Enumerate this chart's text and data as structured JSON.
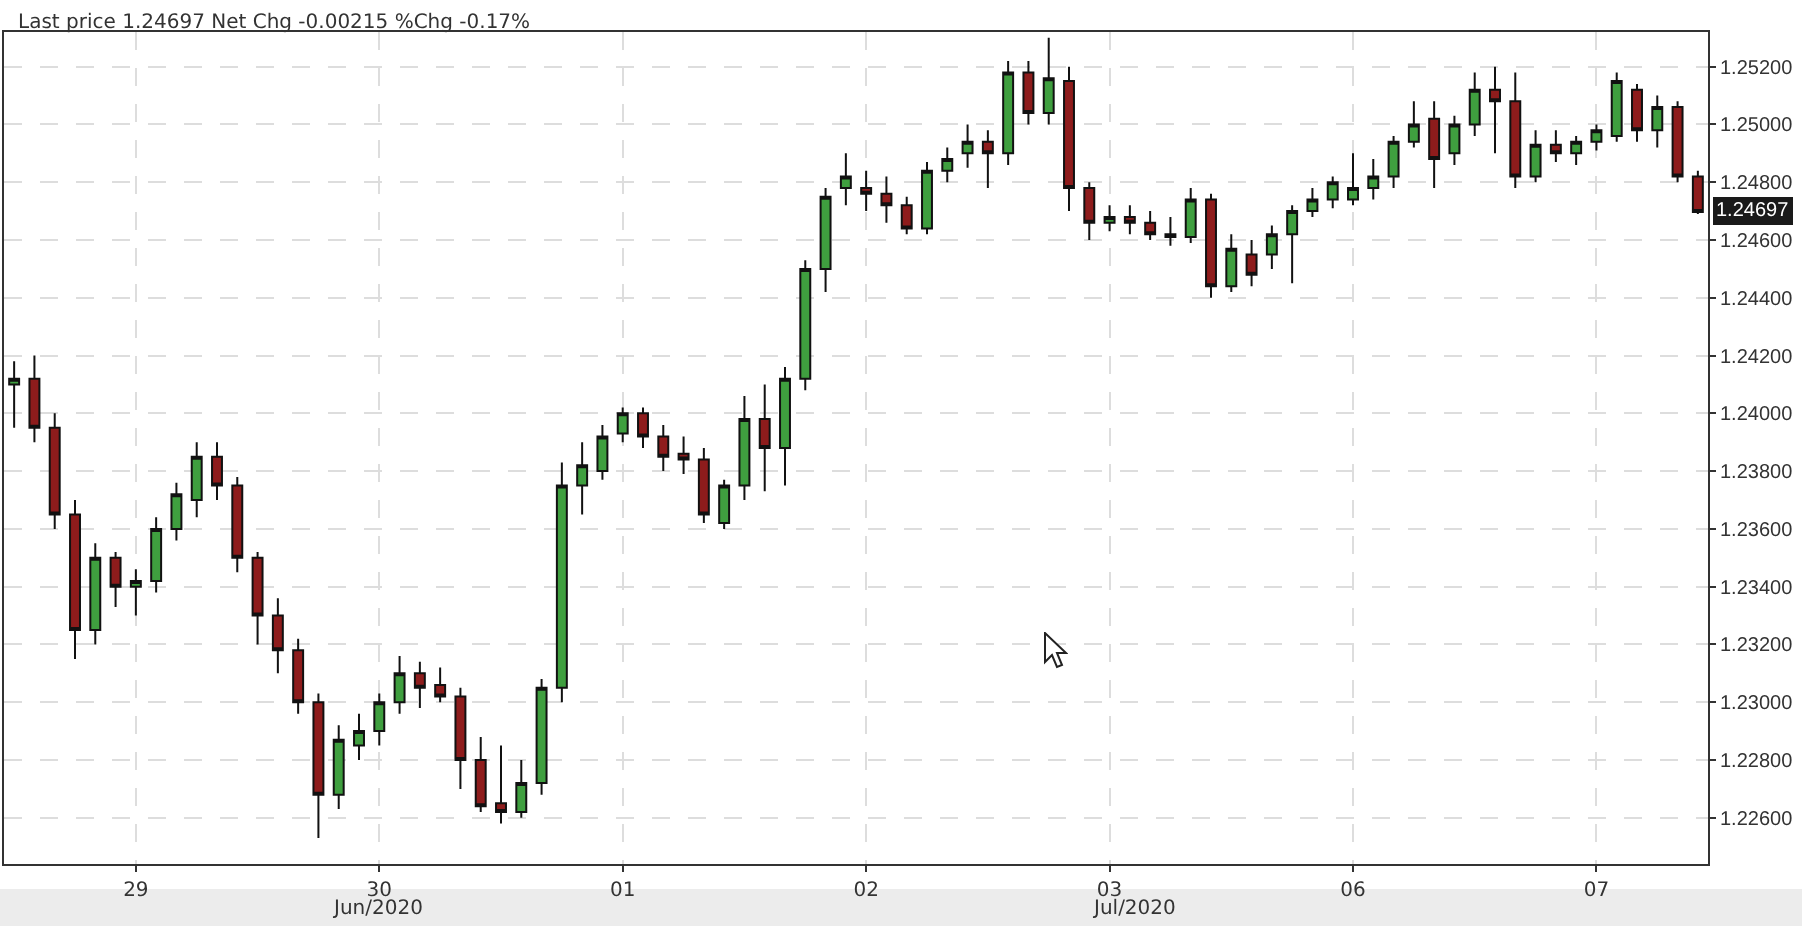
{
  "chart_data": {
    "type": "candlestick",
    "title": "Last price 1.24697 Net Chg -0.00215 %Chg -0.17%",
    "categories": [
      null,
      null,
      null,
      null,
      null,
      null,
      "29",
      null,
      null,
      null,
      null,
      null,
      null,
      null,
      null,
      null,
      null,
      null,
      "30",
      null,
      null,
      null,
      null,
      null,
      null,
      null,
      null,
      null,
      null,
      null,
      "01",
      null,
      null,
      null,
      null,
      null,
      null,
      null,
      null,
      null,
      null,
      null,
      "02",
      null,
      null,
      null,
      null,
      null,
      null,
      null,
      null,
      null,
      null,
      null,
      "03",
      null,
      null,
      null,
      null,
      null,
      null,
      null,
      null,
      null,
      null,
      null,
      "06",
      null,
      null,
      null,
      null,
      null,
      null,
      null,
      null,
      null,
      null,
      null,
      "07",
      null,
      null,
      null,
      null,
      null
    ],
    "ohlc": [
      [
        1.241,
        1.2418,
        1.2395,
        1.2412
      ],
      [
        1.2412,
        1.242,
        1.239,
        1.2395
      ],
      [
        1.2395,
        1.24,
        1.236,
        1.2365
      ],
      [
        1.2365,
        1.237,
        1.2315,
        1.2325
      ],
      [
        1.2325,
        1.2355,
        1.232,
        1.235
      ],
      [
        1.235,
        1.2352,
        1.2333,
        1.234
      ],
      [
        1.234,
        1.2346,
        1.233,
        1.2342
      ],
      [
        1.2342,
        1.2364,
        1.2338,
        1.236
      ],
      [
        1.236,
        1.2376,
        1.2356,
        1.2372
      ],
      [
        1.237,
        1.239,
        1.2364,
        1.2385
      ],
      [
        1.2385,
        1.239,
        1.237,
        1.2375
      ],
      [
        1.2375,
        1.2378,
        1.2345,
        1.235
      ],
      [
        1.235,
        1.2352,
        1.232,
        1.233
      ],
      [
        1.233,
        1.2336,
        1.231,
        1.2318
      ],
      [
        1.2318,
        1.2322,
        1.2296,
        1.23
      ],
      [
        1.23,
        1.2303,
        1.2253,
        1.2268
      ],
      [
        1.2268,
        1.2292,
        1.2263,
        1.2287
      ],
      [
        1.2285,
        1.2296,
        1.228,
        1.229
      ],
      [
        1.229,
        1.2303,
        1.2285,
        1.23
      ],
      [
        1.23,
        1.2316,
        1.2296,
        1.231
      ],
      [
        1.231,
        1.2314,
        1.2298,
        1.2305
      ],
      [
        1.2306,
        1.2312,
        1.23,
        1.2302
      ],
      [
        1.2302,
        1.2305,
        1.227,
        1.228
      ],
      [
        1.228,
        1.2288,
        1.2262,
        1.2264
      ],
      [
        1.2265,
        1.2285,
        1.2258,
        1.2262
      ],
      [
        1.2262,
        1.228,
        1.226,
        1.2272
      ],
      [
        1.2272,
        1.2308,
        1.2268,
        1.2305
      ],
      [
        1.2305,
        1.2383,
        1.23,
        1.2375
      ],
      [
        1.2375,
        1.239,
        1.2365,
        1.2382
      ],
      [
        1.238,
        1.2396,
        1.2377,
        1.2392
      ],
      [
        1.2393,
        1.2402,
        1.239,
        1.24
      ],
      [
        1.24,
        1.2402,
        1.2388,
        1.2392
      ],
      [
        1.2392,
        1.2396,
        1.238,
        1.2385
      ],
      [
        1.2386,
        1.2392,
        1.2379,
        1.2384
      ],
      [
        1.2384,
        1.2388,
        1.2362,
        1.2365
      ],
      [
        1.2362,
        1.2377,
        1.236,
        1.2375
      ],
      [
        1.2375,
        1.2406,
        1.237,
        1.2398
      ],
      [
        1.2398,
        1.241,
        1.2373,
        1.2388
      ],
      [
        1.2388,
        1.2416,
        1.2375,
        1.2412
      ],
      [
        1.2412,
        1.2453,
        1.2408,
        1.245
      ],
      [
        1.245,
        1.2478,
        1.2442,
        1.2475
      ],
      [
        1.2478,
        1.249,
        1.2472,
        1.2482
      ],
      [
        1.2478,
        1.2484,
        1.247,
        1.2476
      ],
      [
        1.2476,
        1.2482,
        1.2466,
        1.2472
      ],
      [
        1.2472,
        1.2475,
        1.2462,
        1.2464
      ],
      [
        1.2464,
        1.2487,
        1.2462,
        1.2484
      ],
      [
        1.2484,
        1.2492,
        1.248,
        1.2488
      ],
      [
        1.249,
        1.25,
        1.2485,
        1.2494
      ],
      [
        1.2494,
        1.2498,
        1.2478,
        1.249
      ],
      [
        1.249,
        1.2522,
        1.2486,
        1.2518
      ],
      [
        1.2518,
        1.2522,
        1.25,
        1.2504
      ],
      [
        1.2504,
        1.253,
        1.25,
        1.2516
      ],
      [
        1.2515,
        1.252,
        1.247,
        1.2478
      ],
      [
        1.2478,
        1.248,
        1.246,
        1.2466
      ],
      [
        1.2466,
        1.2472,
        1.2463,
        1.2468
      ],
      [
        1.2468,
        1.2472,
        1.2462,
        1.2466
      ],
      [
        1.2466,
        1.247,
        1.246,
        1.2462
      ],
      [
        1.2462,
        1.2468,
        1.2458,
        1.2461
      ],
      [
        1.2461,
        1.2478,
        1.2459,
        1.2474
      ],
      [
        1.2474,
        1.2476,
        1.244,
        1.2444
      ],
      [
        1.2444,
        1.2462,
        1.2442,
        1.2457
      ],
      [
        1.2455,
        1.246,
        1.2444,
        1.2448
      ],
      [
        1.2455,
        1.2465,
        1.245,
        1.2462
      ],
      [
        1.2462,
        1.2472,
        1.2445,
        1.247
      ],
      [
        1.247,
        1.2478,
        1.2468,
        1.2474
      ],
      [
        1.2474,
        1.2482,
        1.2471,
        1.248
      ],
      [
        1.2474,
        1.249,
        1.2472,
        1.2478
      ],
      [
        1.2478,
        1.2488,
        1.2474,
        1.2482
      ],
      [
        1.2482,
        1.2496,
        1.2478,
        1.2494
      ],
      [
        1.2494,
        1.2508,
        1.2492,
        1.25
      ],
      [
        1.2502,
        1.2508,
        1.2478,
        1.2488
      ],
      [
        1.249,
        1.2503,
        1.2486,
        1.25
      ],
      [
        1.25,
        1.2518,
        1.2496,
        1.2512
      ],
      [
        1.2512,
        1.252,
        1.249,
        1.2508
      ],
      [
        1.2508,
        1.2518,
        1.2478,
        1.2482
      ],
      [
        1.2482,
        1.2498,
        1.248,
        1.2493
      ],
      [
        1.2493,
        1.2498,
        1.2487,
        1.249
      ],
      [
        1.249,
        1.2496,
        1.2486,
        1.2494
      ],
      [
        1.2494,
        1.25,
        1.2491,
        1.2498
      ],
      [
        1.2496,
        1.2518,
        1.2494,
        1.2515
      ],
      [
        1.2512,
        1.2514,
        1.2494,
        1.2498
      ],
      [
        1.2498,
        1.251,
        1.2492,
        1.2506
      ],
      [
        1.2506,
        1.2508,
        1.248,
        1.2482
      ],
      [
        1.2482,
        1.2484,
        1.2469,
        1.24697
      ]
    ],
    "ylim": [
      1.2244,
      1.2532
    ],
    "yticks": [
      {
        "value": 1.226,
        "label": "1.22600"
      },
      {
        "value": 1.228,
        "label": "1.22800"
      },
      {
        "value": 1.23,
        "label": "1.23000"
      },
      {
        "value": 1.232,
        "label": "1.23200"
      },
      {
        "value": 1.234,
        "label": "1.23400"
      },
      {
        "value": 1.236,
        "label": "1.23600"
      },
      {
        "value": 1.238,
        "label": "1.23800"
      },
      {
        "value": 1.24,
        "label": "1.24000"
      },
      {
        "value": 1.242,
        "label": "1.24200"
      },
      {
        "value": 1.244,
        "label": "1.24400"
      },
      {
        "value": 1.246,
        "label": "1.24600"
      },
      {
        "value": 1.248,
        "label": "1.24800"
      },
      {
        "value": 1.25,
        "label": "1.25000"
      },
      {
        "value": 1.252,
        "label": "1.25200"
      }
    ],
    "annotations": [
      {
        "text": "1.24697",
        "y": 1.24697
      },
      "Jun/2020",
      "Jul/2020"
    ],
    "grid": true
  }
}
